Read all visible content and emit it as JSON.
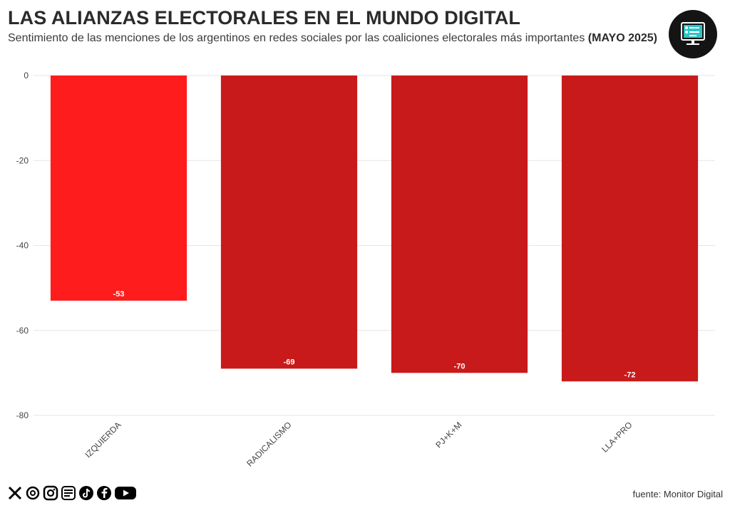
{
  "header": {
    "title": "LAS ALIANZAS ELECTORALES EN EL MUNDO DIGITAL",
    "subtitle": "Sentimiento de las menciones de los argentinos en redes sociales por las coaliciones electorales más importantes",
    "subtitle_bold": "(MAYO 2025)"
  },
  "logo": {
    "icon": "monitor-icon"
  },
  "chart_data": {
    "type": "bar",
    "title": "LAS ALIANZAS ELECTORALES EN EL MUNDO DIGITAL",
    "categories": [
      "IZQUIERDA",
      "RADICALISMO",
      "PJ+K+M",
      "LLA+PRO"
    ],
    "values": [
      -53,
      -69,
      -70,
      -72
    ],
    "data_labels": [
      "-53",
      "-69",
      "-70",
      "-72"
    ],
    "colors": [
      "#ff1c1c",
      "#c81a1a",
      "#c81a1a",
      "#c81a1a"
    ],
    "ylim": [
      -80,
      0
    ],
    "yticks": [
      0,
      -20,
      -40,
      -60,
      -80
    ],
    "ytick_labels": [
      "0",
      "-20",
      "-40",
      "-60",
      "-80"
    ],
    "xlabel": "",
    "ylabel": "",
    "grid": true,
    "legend": "none"
  },
  "footer": {
    "social_icons": [
      "x-icon",
      "threads-icon",
      "instagram-icon",
      "monitor-digital-icon",
      "tiktok-icon",
      "facebook-icon",
      "youtube-icon"
    ],
    "source": "fuente: Monitor Digital"
  }
}
